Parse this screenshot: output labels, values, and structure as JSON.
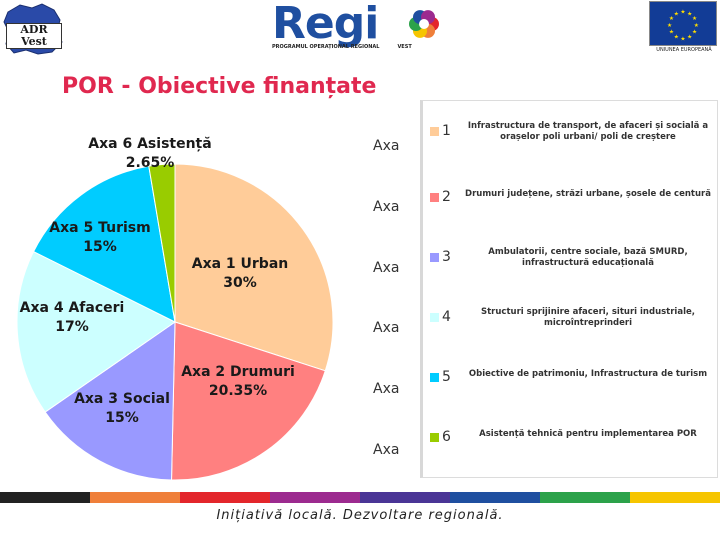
{
  "header": {
    "adr_logo_text": "ADR Vest",
    "regio_word": "Regi",
    "regio_subtitle": "PROGRAMUL OPERAȚIONAL REGIONAL",
    "regio_subtitle_right": "VEST",
    "eu_caption": "UNIUNEA EUROPEANĂ"
  },
  "slide": {
    "title": "POR - Obiective finanțate"
  },
  "chart_data": {
    "type": "pie",
    "title": "POR - Obiective finanțate",
    "slices": [
      {
        "label": "Axa 1 Urban",
        "value": 30,
        "value_label": "30%",
        "color": "#ffcc99"
      },
      {
        "label": "Axa 2 Drumuri",
        "value": 20.35,
        "value_label": "20.35%",
        "color": "#ff8080"
      },
      {
        "label": "Axa 3 Social",
        "value": 15,
        "value_label": "15%",
        "color": "#9999ff"
      },
      {
        "label": "Axa 4 Afaceri",
        "value": 17,
        "value_label": "17%",
        "color": "#ccffff"
      },
      {
        "label": "Axa 5 Turism",
        "value": 15,
        "value_label": "15%",
        "color": "#00ccff"
      },
      {
        "label": "Axa 6 Asistență",
        "value": 2.65,
        "value_label": "2.65%",
        "color": "#99cc00"
      }
    ],
    "legend_position": "right"
  },
  "legend": {
    "axa_word": "Axa",
    "items": [
      {
        "num": "1",
        "desc": "Infrastructura de transport, de afaceri și socială a orașelor poli urbani/ poli de creștere"
      },
      {
        "num": "2",
        "desc": "Drumuri județene, străzi urbane, șosele de centură"
      },
      {
        "num": "3",
        "desc": "Ambulatorii, centre sociale, bază SMURD, infrastructură educațională"
      },
      {
        "num": "4",
        "desc": "Structuri sprijinire afaceri, situri industriale, microîntreprinderi"
      },
      {
        "num": "5",
        "desc": "Obiective de patrimoniu, Infrastructura de turism"
      },
      {
        "num": "6",
        "desc": "Asistență tehnică pentru implementarea POR"
      }
    ]
  },
  "footer": {
    "tagline": "Inițiativă locală. Dezvoltare regională.",
    "stripe_colors": [
      "#222222",
      "#ef7f3a",
      "#e3262b",
      "#9c2a8f",
      "#4a3596",
      "#1f4fa0",
      "#2ca24a",
      "#f6c500"
    ]
  }
}
